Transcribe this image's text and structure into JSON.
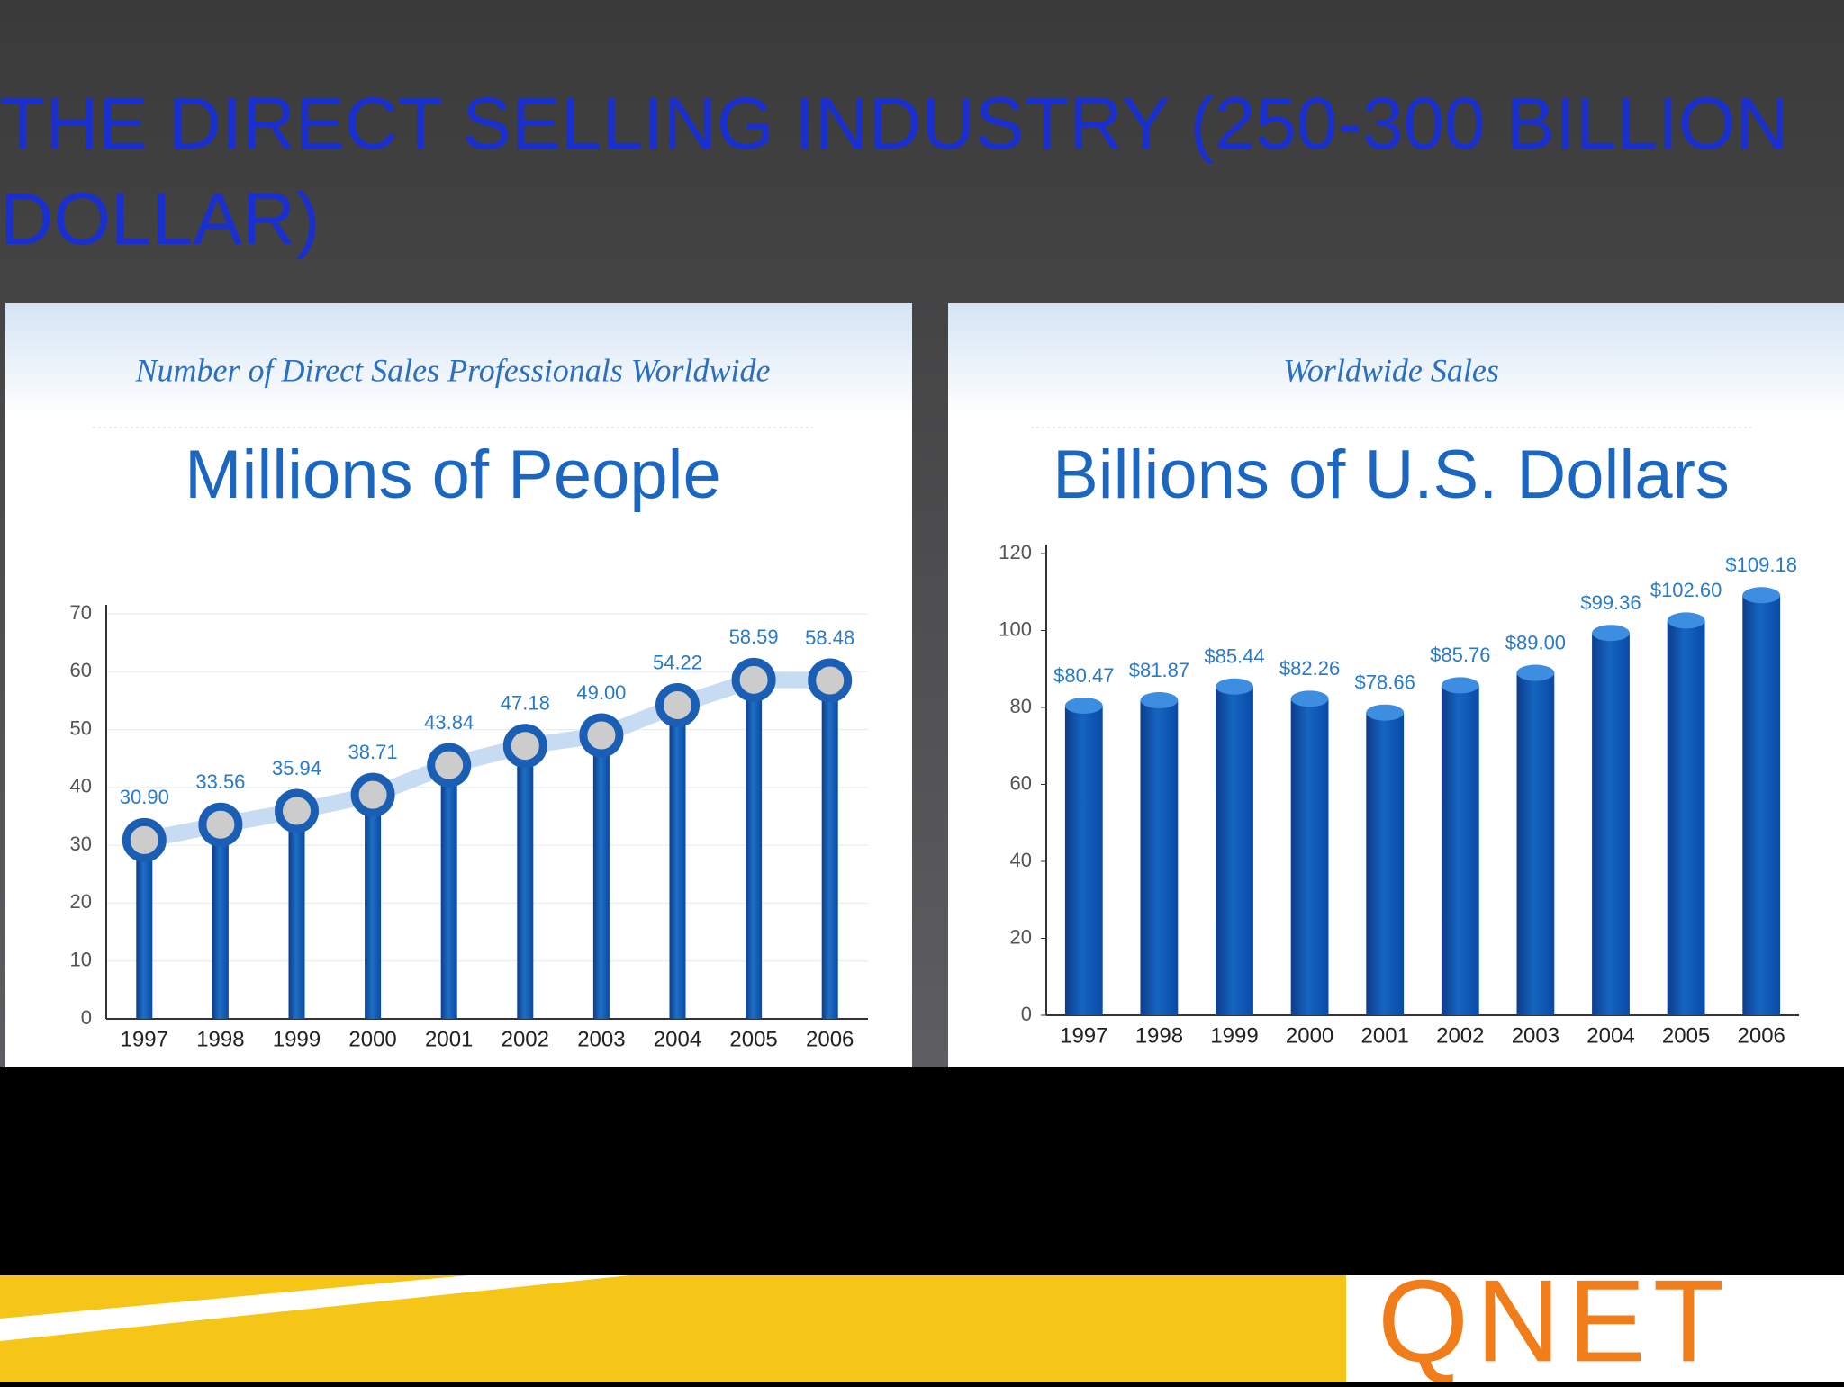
{
  "slide": {
    "title": "THE DIRECT SELLING INDUSTRY (250-300 BILLION DOLLAR)",
    "logo": "QNET"
  },
  "chart_data": [
    {
      "type": "lollipop",
      "title": "Number of Direct Sales Professionals Worldwide",
      "subtitle": "Millions of People",
      "categories": [
        "1997",
        "1998",
        "1999",
        "2000",
        "2001",
        "2002",
        "2003",
        "2004",
        "2005",
        "2006"
      ],
      "values": [
        30.9,
        33.56,
        35.94,
        38.71,
        43.84,
        47.18,
        49,
        54.22,
        58.59,
        58.48
      ],
      "value_labels": [
        "30.90",
        "33.56",
        "35.94",
        "38.71",
        "43.84",
        "47.18",
        "49.00",
        "54.22",
        "58.59",
        "58.48"
      ],
      "color": "#1e6fc4",
      "ylim": [
        0,
        70
      ],
      "yticks": [
        0,
        10,
        20,
        30,
        40,
        50,
        60,
        70
      ],
      "grid": true
    },
    {
      "type": "bar",
      "title": "Worldwide Sales",
      "subtitle": "Billions of U.S. Dollars",
      "categories": [
        "1997",
        "1998",
        "1999",
        "2000",
        "2001",
        "2002",
        "2003",
        "2004",
        "2005",
        "2006"
      ],
      "values": [
        80.47,
        81.87,
        85.44,
        82.26,
        78.66,
        85.76,
        89,
        99.36,
        102.6,
        109.18
      ],
      "value_labels": [
        "$80.47",
        "$81.87",
        "$85.44",
        "$82.26",
        "$78.66",
        "$85.76",
        "$89.00",
        "$99.36",
        "$102.60",
        "$109.18"
      ],
      "color": "#1565c0",
      "ylim": [
        0,
        120
      ],
      "yticks": [
        0,
        20,
        40,
        60,
        80,
        100,
        120
      ],
      "grid": false
    }
  ]
}
